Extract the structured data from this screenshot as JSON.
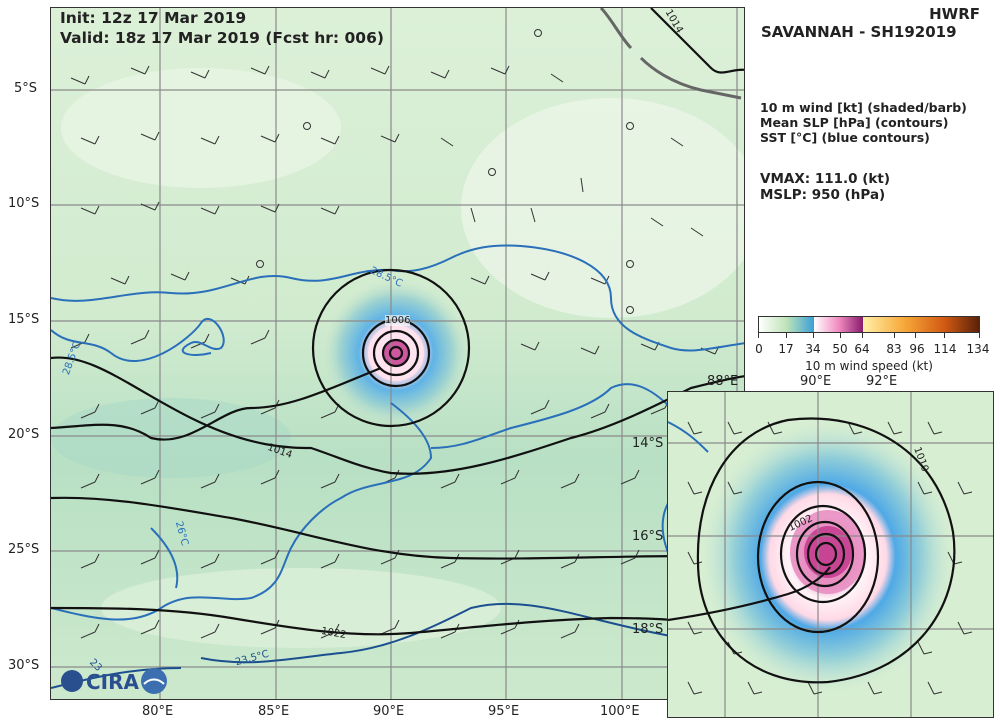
{
  "header": {
    "init_line": "Init:   12z 17 Mar 2019",
    "valid_line": "Valid: 18z 17 Mar 2019 (Fcst hr: 006)"
  },
  "model": {
    "name": "HWRF",
    "storm": "SAVANNAH - SH192019"
  },
  "fields": {
    "wind": "10 m wind [kt] (shaded/barb)",
    "slp": "Mean SLP [hPa] (contours)",
    "sst": "SST [°C] (blue contours)"
  },
  "stats": {
    "vmax": "VMAX: 111.0 (kt)",
    "mslp": "MSLP:  950 (hPa)"
  },
  "colorbar": {
    "ticks": [
      "0",
      "17",
      "34",
      "50",
      "64",
      "83",
      "96",
      "114",
      "134"
    ],
    "label": "10 m wind speed (kt)"
  },
  "main_map": {
    "lat_labels": [
      "5°S",
      "10°S",
      "15°S",
      "20°S",
      "25°S",
      "30°S"
    ],
    "lon_labels": [
      "80°E",
      "85°E",
      "90°E",
      "95°E",
      "100°E"
    ],
    "contour_labels": {
      "slp_1006": "1006",
      "slp_1014_a": "1014",
      "slp_1014_b": "1014",
      "slp_1022": "1022",
      "sst_28_5_a": "28.5°C",
      "sst_28_5_b": "28.5°C",
      "sst_26": "26°C",
      "sst_23_5": "23.5°C",
      "sst_23": "23"
    }
  },
  "inset_map": {
    "lat_labels": [
      "14°S",
      "16°S",
      "18°S"
    ],
    "lon_labels": [
      "88°E",
      "90°E",
      "92°E"
    ],
    "contour_labels": {
      "slp_1002": "1002",
      "slp_1010": "1010"
    }
  },
  "logos": {
    "cira": "CIRA"
  },
  "colors": {
    "sst_contour": "#2a6fba",
    "slp_contour": "#111111",
    "map_bg": "#d7eed2",
    "grid": "#888888"
  }
}
